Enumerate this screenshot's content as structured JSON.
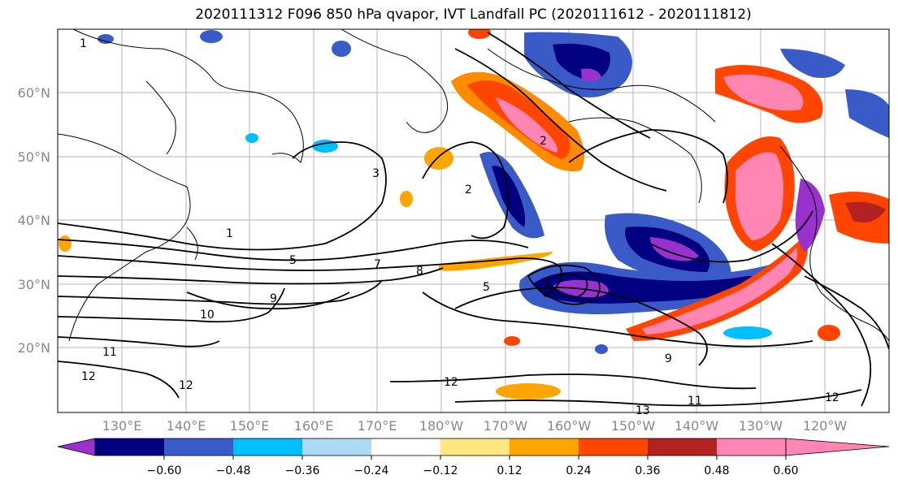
{
  "title": "2020111312 F096 850 hPa qvapor, IVT Landfall PC (2020111612 - 2020111812)",
  "lat_ticks": [
    "20°N",
    "30°N",
    "40°N",
    "50°N",
    "60°N"
  ],
  "lon_ticks": [
    "130°E",
    "140°E",
    "150°E",
    "160°E",
    "170°E",
    "180°W",
    "170°W",
    "160°W",
    "150°W",
    "140°W",
    "130°W",
    "120°W"
  ],
  "colorbar": {
    "ticks": [
      "−0.60",
      "−0.48",
      "−0.36",
      "−0.24",
      "−0.12",
      "0.12",
      "0.24",
      "0.36",
      "0.48",
      "0.60"
    ],
    "colors": [
      "#9932CC",
      "#000080",
      "#3A5BC7",
      "#00BFFF",
      "#ADD8F6",
      "#FFFFFF",
      "#FFE680",
      "#FFA500",
      "#FF4500",
      "#B22222",
      "#FF85B3"
    ]
  },
  "contour_labels": [
    "1",
    "2",
    "3",
    "5",
    "7",
    "8",
    "9",
    "10",
    "11",
    "12",
    "13"
  ]
}
